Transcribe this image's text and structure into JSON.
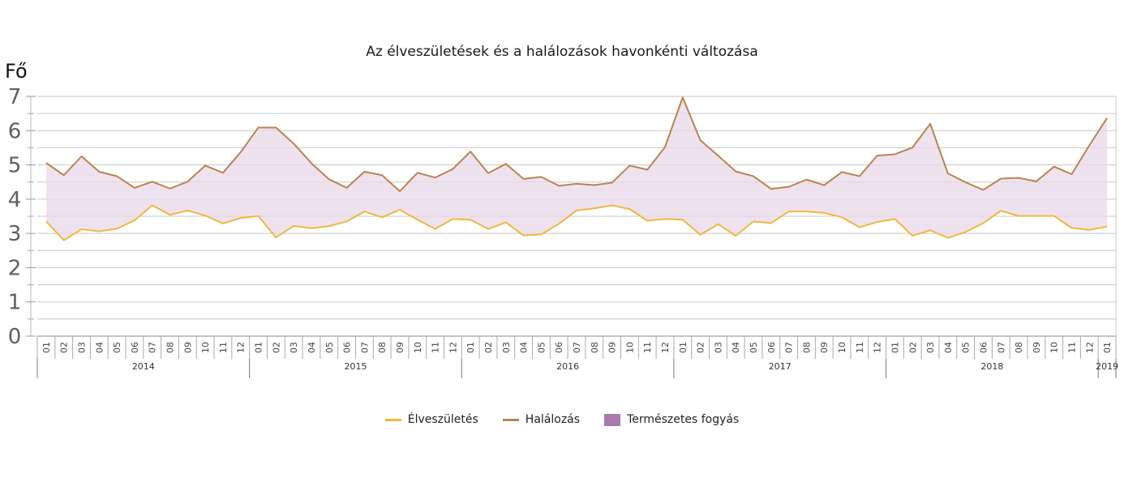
{
  "chart_data": {
    "type": "line",
    "title": "Az élveszületések és a halálozások havonkénti változása",
    "ylabel": "Fő",
    "ylim": [
      0,
      7
    ],
    "yticks": [
      "0",
      "1",
      "2",
      "3",
      "4",
      "5",
      "6",
      "7"
    ],
    "grid": true,
    "legend_placement": "bottom",
    "months": [
      "01",
      "02",
      "03",
      "04",
      "05",
      "06",
      "07",
      "08",
      "09",
      "10",
      "11",
      "12"
    ],
    "years": [
      {
        "label": "2014",
        "months": 12
      },
      {
        "label": "2015",
        "months": 12
      },
      {
        "label": "2016",
        "months": 12
      },
      {
        "label": "2017",
        "months": 12
      },
      {
        "label": "2018",
        "months": 12
      },
      {
        "label": "2019",
        "months": 1
      }
    ],
    "series": [
      {
        "name": "Élveszületés",
        "color": "#f0b840",
        "values": [
          3.35,
          2.8,
          3.12,
          3.06,
          3.14,
          3.38,
          3.82,
          3.54,
          3.67,
          3.52,
          3.29,
          3.45,
          3.51,
          2.88,
          3.22,
          3.15,
          3.21,
          3.35,
          3.64,
          3.47,
          3.69,
          3.4,
          3.13,
          3.42,
          3.4,
          3.13,
          3.32,
          2.94,
          2.97,
          3.28,
          3.67,
          3.73,
          3.82,
          3.71,
          3.37,
          3.42,
          3.4,
          2.96,
          3.27,
          2.93,
          3.35,
          3.3,
          3.64,
          3.64,
          3.6,
          3.47,
          3.18,
          3.33,
          3.42,
          2.93,
          3.09,
          2.87,
          3.04,
          3.3,
          3.66,
          3.51,
          3.51,
          3.51,
          3.16,
          3.1,
          3.2
        ]
      },
      {
        "name": "Halálozás",
        "color": "#b8854f",
        "values": [
          5.06,
          4.7,
          5.25,
          4.8,
          4.67,
          4.33,
          4.51,
          4.31,
          4.51,
          4.98,
          4.77,
          5.37,
          6.09,
          6.09,
          5.62,
          5.05,
          4.58,
          4.33,
          4.8,
          4.7,
          4.23,
          4.77,
          4.63,
          4.88,
          5.39,
          4.76,
          5.03,
          4.59,
          4.65,
          4.39,
          4.45,
          4.41,
          4.48,
          4.98,
          4.86,
          5.52,
          6.97,
          5.72,
          5.27,
          4.81,
          4.67,
          4.3,
          4.36,
          4.57,
          4.41,
          4.79,
          4.67,
          5.27,
          5.31,
          5.51,
          6.2,
          4.75,
          4.49,
          4.27,
          4.6,
          4.62,
          4.52,
          4.95,
          4.73,
          5.57,
          6.37
        ]
      }
    ],
    "area": {
      "name": "Természetes fogyás",
      "color": "#ead8ea",
      "legend_color": "#a87aad"
    }
  }
}
